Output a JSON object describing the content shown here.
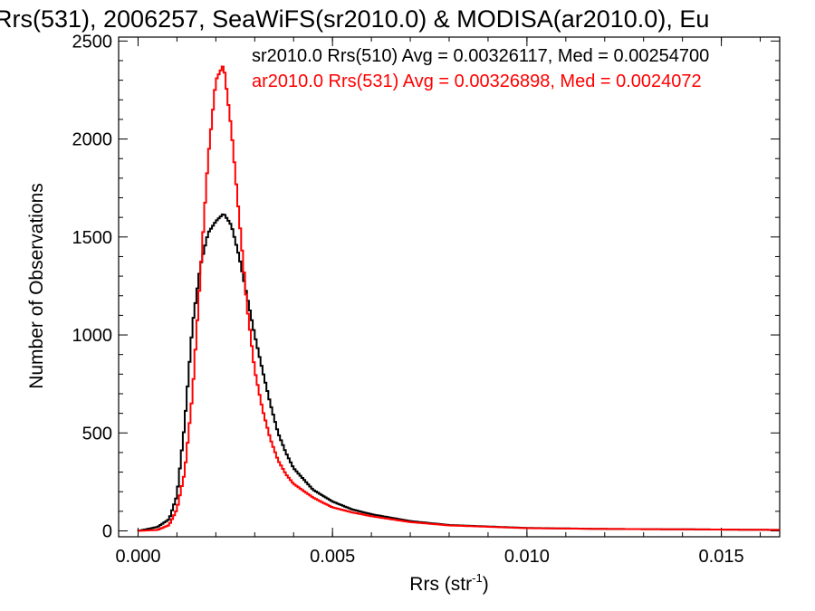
{
  "chart_data": {
    "type": "line",
    "step": true,
    "title": "Rrs(531), 2006257, SeaWiFS(sr2010.0) & MODISA(ar2010.0), Eu",
    "xlabel": "Rrs (str",
    "xlabel_sup": "-1",
    "xlabel_end": ")",
    "ylabel": "Number of Observations",
    "xlim": [
      -0.0005,
      0.0165
    ],
    "ylim": [
      -30,
      2520
    ],
    "xticks": [
      0.0,
      0.005,
      0.01,
      0.015
    ],
    "xtick_labels": [
      "0.000",
      "0.005",
      "0.010",
      "0.015"
    ],
    "yticks": [
      0,
      500,
      1000,
      1500,
      2000,
      2500
    ],
    "ytick_labels": [
      "0",
      "500",
      "1000",
      "1500",
      "2000",
      "2500"
    ],
    "grid": false,
    "legend_position": "top-right",
    "series": [
      {
        "name": "sr2010.0 Rrs(510) Avg = 0.00326117, Med = 0.00254700",
        "color": "#000000",
        "x": [
          0.0,
          0.0005,
          0.0008,
          0.001,
          0.0012,
          0.0014,
          0.0016,
          0.0018,
          0.002,
          0.0022,
          0.0024,
          0.0026,
          0.0028,
          0.003,
          0.0032,
          0.0034,
          0.0036,
          0.0038,
          0.004,
          0.0045,
          0.005,
          0.0055,
          0.006,
          0.007,
          0.008,
          0.01,
          0.012,
          0.014,
          0.0165
        ],
        "y": [
          0,
          20,
          60,
          180,
          550,
          1050,
          1350,
          1520,
          1580,
          1620,
          1560,
          1400,
          1200,
          1000,
          820,
          650,
          500,
          400,
          320,
          210,
          150,
          110,
          85,
          50,
          30,
          15,
          10,
          8,
          5
        ]
      },
      {
        "name": "ar2010.0 Rrs(531) Avg = 0.00326898, Med = 0.0024072",
        "color": "#ff0000",
        "x": [
          0.0,
          0.0005,
          0.0008,
          0.001,
          0.0012,
          0.0014,
          0.0016,
          0.0018,
          0.002,
          0.0022,
          0.0024,
          0.0026,
          0.0028,
          0.003,
          0.0032,
          0.0034,
          0.0036,
          0.0038,
          0.004,
          0.0045,
          0.005,
          0.0055,
          0.006,
          0.007,
          0.008,
          0.01,
          0.012,
          0.014,
          0.0165
        ],
        "y": [
          0,
          5,
          30,
          110,
          300,
          700,
          1300,
          1900,
          2300,
          2380,
          2050,
          1600,
          1150,
          820,
          620,
          470,
          360,
          290,
          240,
          170,
          120,
          95,
          75,
          45,
          28,
          14,
          10,
          8,
          5
        ]
      }
    ]
  }
}
